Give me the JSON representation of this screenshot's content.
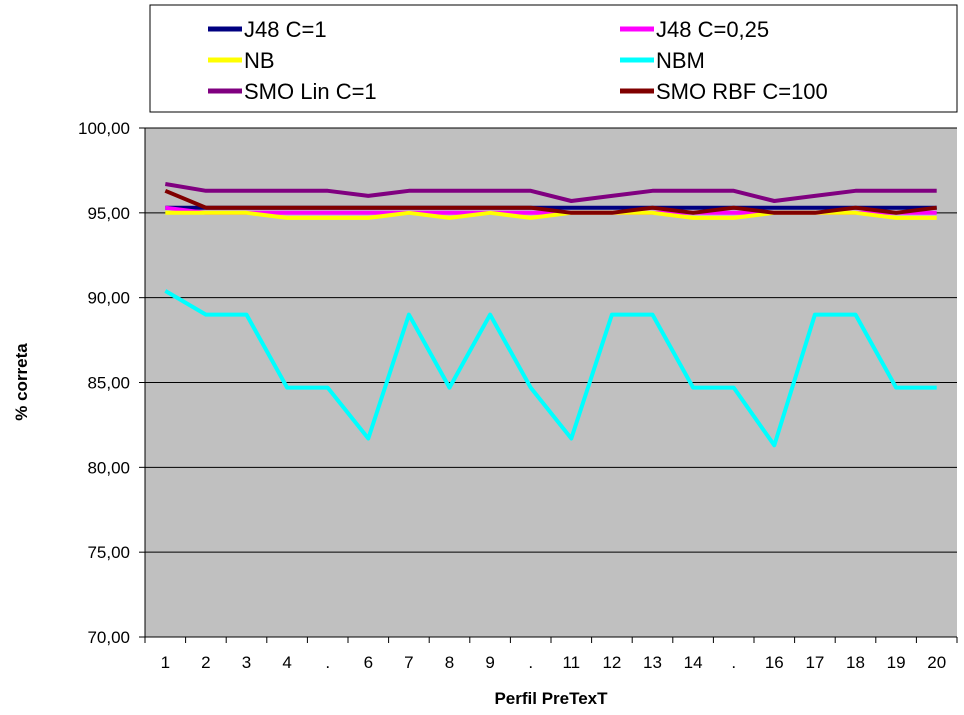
{
  "chart_data": {
    "type": "line",
    "xlabel": "Perfil PreTexT",
    "ylabel": "% correta",
    "ylim": [
      70,
      100
    ],
    "yticks": [
      "70,00",
      "75,00",
      "80,00",
      "85,00",
      "90,00",
      "95,00",
      "100,00"
    ],
    "categories": [
      "1",
      "2",
      "3",
      "4",
      ".",
      "6",
      "7",
      "8",
      "9",
      ".",
      "11",
      "12",
      "13",
      "14",
      ".",
      "16",
      "17",
      "18",
      "19",
      "20"
    ],
    "grid": true,
    "plot_background": "#c0c0c0",
    "legend_position": "top",
    "series": [
      {
        "name": "J48 C=1",
        "color": "#000080",
        "values": [
          95.3,
          95.3,
          95.3,
          95.3,
          95.3,
          95.3,
          95.3,
          95.3,
          95.3,
          95.3,
          95.3,
          95.3,
          95.3,
          95.3,
          95.3,
          95.3,
          95.3,
          95.3,
          95.3,
          95.3
        ]
      },
      {
        "name": "J48 C=0,25",
        "color": "#ff00ff",
        "values": [
          95.3,
          95.0,
          95.0,
          95.0,
          95.0,
          95.0,
          95.0,
          95.0,
          95.0,
          95.0,
          95.0,
          95.0,
          95.0,
          95.0,
          95.0,
          95.0,
          95.0,
          95.0,
          95.0,
          95.0
        ]
      },
      {
        "name": "NB",
        "color": "#ffff00",
        "values": [
          95.0,
          95.0,
          95.0,
          94.7,
          94.7,
          94.7,
          95.0,
          94.7,
          95.0,
          94.7,
          95.0,
          95.0,
          95.0,
          94.7,
          94.7,
          95.0,
          95.0,
          95.0,
          94.7,
          94.7
        ]
      },
      {
        "name": "NBM",
        "color": "#00ffff",
        "values": [
          90.4,
          89.0,
          89.0,
          84.7,
          84.7,
          81.7,
          89.0,
          84.7,
          89.0,
          84.7,
          81.7,
          89.0,
          89.0,
          84.7,
          84.7,
          81.3,
          89.0,
          89.0,
          84.7,
          84.7
        ]
      },
      {
        "name": "SMO Lin C=1",
        "color": "#800080",
        "values": [
          96.7,
          96.3,
          96.3,
          96.3,
          96.3,
          96.0,
          96.3,
          96.3,
          96.3,
          96.3,
          95.7,
          96.0,
          96.3,
          96.3,
          96.3,
          95.7,
          96.0,
          96.3,
          96.3,
          96.3
        ]
      },
      {
        "name": "SMO RBF C=100",
        "color": "#800000",
        "values": [
          96.3,
          95.3,
          95.3,
          95.3,
          95.3,
          95.3,
          95.3,
          95.3,
          95.3,
          95.3,
          95.0,
          95.0,
          95.3,
          95.0,
          95.3,
          95.0,
          95.0,
          95.3,
          95.0,
          95.3
        ]
      }
    ]
  }
}
